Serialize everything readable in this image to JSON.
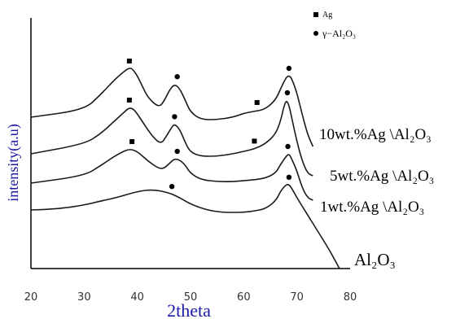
{
  "chart_data": {
    "type": "line",
    "xlabel": "2theta",
    "ylabel": "intensity(a.u)",
    "xlim": [
      20,
      80
    ],
    "x_ticks": [
      "20",
      "30",
      "40",
      "50",
      "60",
      "70",
      "80"
    ],
    "grid": false,
    "legend_position": "top-right",
    "legend": [
      {
        "marker": "square",
        "label": "Ag"
      },
      {
        "marker": "circle",
        "label": "γ−Al₂O₃"
      }
    ],
    "series": [
      {
        "name": "10wt.%Ag \\Al₂O₃",
        "x": [
          20,
          30,
          33,
          36,
          38,
          38.5,
          39,
          40,
          41,
          42,
          44,
          45,
          46,
          47,
          48,
          49,
          50,
          52,
          55,
          58,
          60,
          62,
          64,
          66,
          67,
          68,
          68.5,
          69,
          70,
          71,
          72,
          73
        ],
        "y": [
          2.1,
          2.25,
          2.55,
          2.9,
          3.08,
          3.1,
          3.1,
          2.95,
          2.72,
          2.5,
          2.3,
          2.42,
          2.65,
          2.78,
          2.68,
          2.45,
          2.2,
          2.05,
          2.05,
          2.1,
          2.18,
          2.22,
          2.26,
          2.45,
          2.7,
          2.92,
          2.95,
          2.9,
          2.6,
          2.15,
          1.75,
          1.5
        ],
        "markers": [
          {
            "type": "square",
            "x": 38.5,
            "y": 3.25
          },
          {
            "type": "circle",
            "x": 47.5,
            "y": 2.93
          },
          {
            "type": "square",
            "x": 62.5,
            "y": 2.4
          },
          {
            "type": "circle",
            "x": 68.5,
            "y": 3.1
          }
        ]
      },
      {
        "name": "5wt.%Ag \\Al₂O₃",
        "x": [
          20,
          30,
          33,
          36,
          37.5,
          38.5,
          39.5,
          41,
          43,
          44.5,
          45.5,
          46.5,
          47,
          48,
          49,
          50,
          52,
          55,
          58,
          60,
          62,
          64,
          66,
          67,
          67.5,
          68,
          68.5,
          69,
          70,
          71,
          72,
          73
        ],
        "y": [
          1.35,
          1.55,
          1.75,
          2.05,
          2.2,
          2.3,
          2.25,
          2.0,
          1.68,
          1.55,
          1.72,
          1.9,
          1.96,
          1.85,
          1.58,
          1.38,
          1.3,
          1.3,
          1.35,
          1.4,
          1.45,
          1.55,
          1.75,
          2.05,
          2.3,
          2.45,
          2.35,
          2.1,
          1.6,
          1.2,
          0.95,
          0.9
        ],
        "markers": [
          {
            "type": "square",
            "x": 38.5,
            "y": 2.45
          },
          {
            "type": "circle",
            "x": 47,
            "y": 2.11
          },
          {
            "type": "square",
            "x": 62,
            "y": 1.61
          },
          {
            "type": "circle",
            "x": 68.2,
            "y": 2.6
          }
        ]
      },
      {
        "name": "1wt.%Ag \\Al₂O₃",
        "x": [
          20,
          30,
          33,
          35,
          37,
          38.5,
          40,
          42,
          44,
          45,
          46,
          47,
          48,
          49,
          50,
          52,
          55,
          58,
          60,
          62,
          64,
          66,
          67,
          68,
          68.5,
          69,
          70,
          71,
          72,
          73
        ],
        "y": [
          0.75,
          0.9,
          1.1,
          1.25,
          1.38,
          1.45,
          1.4,
          1.2,
          1.05,
          1.05,
          1.15,
          1.25,
          1.22,
          1.12,
          0.95,
          0.82,
          0.78,
          0.78,
          0.8,
          0.82,
          0.85,
          0.95,
          1.15,
          1.3,
          1.35,
          1.25,
          1.0,
          0.65,
          0.45,
          0.4
        ],
        "markers": [
          {
            "type": "square",
            "x": 39,
            "y": 1.6
          },
          {
            "type": "circle",
            "x": 47.5,
            "y": 1.4
          },
          {
            "type": "circle",
            "x": 68.3,
            "y": 1.5
          }
        ]
      },
      {
        "name": "Al₂O₃",
        "x": [
          20,
          25,
          30,
          33,
          36,
          40,
          43,
          46,
          48,
          50,
          53,
          56,
          58,
          60,
          62,
          64,
          66,
          67,
          68,
          68.5,
          69,
          70,
          72,
          74,
          76,
          77,
          78
        ],
        "y": [
          0.2,
          0.22,
          0.3,
          0.38,
          0.45,
          0.58,
          0.62,
          0.55,
          0.45,
          0.32,
          0.2,
          0.15,
          0.15,
          0.15,
          0.18,
          0.22,
          0.38,
          0.6,
          0.72,
          0.72,
          0.65,
          0.45,
          0.1,
          -0.25,
          -0.6,
          -0.8,
          -1.0
        ],
        "markers": [
          {
            "type": "circle",
            "x": 46.5,
            "y": 0.68
          },
          {
            "type": "circle",
            "x": 68.5,
            "y": 0.87
          }
        ]
      }
    ]
  }
}
